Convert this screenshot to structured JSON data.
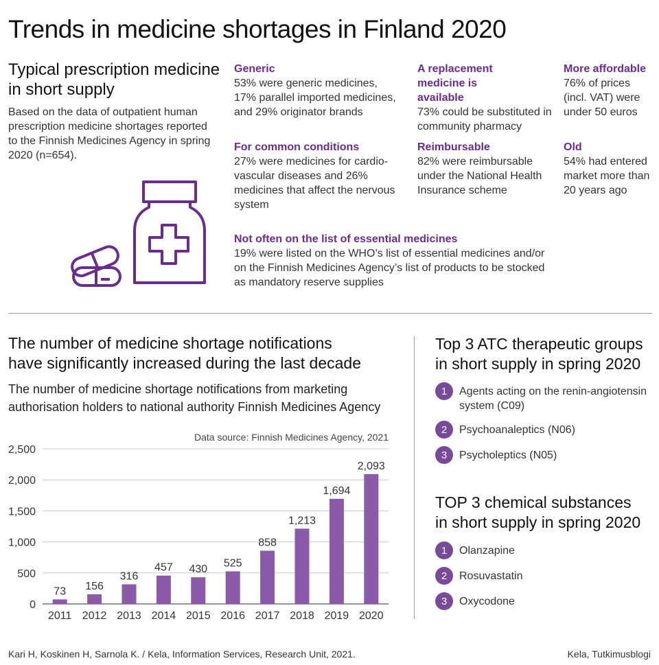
{
  "title": "Trends in medicine shortages in Finland 2020",
  "intro": {
    "heading_line1": "Typical prescription medicine",
    "heading_line2": "in short supply",
    "text": "Based on the data of outpatient human prescription medicine shortages reported to the Finnish Medicines Agency in spring 2020 (n=654)."
  },
  "facts": [
    {
      "title": "Generic",
      "text": "53% were generic medicines, 17% parallel imported medicines, and 29% originator brands"
    },
    {
      "title": "A replacement medicine is available",
      "text": "73% could be substituted in community pharmacy"
    },
    {
      "title": "More affordable",
      "text": "76% of prices (incl. VAT) were under 50 euros"
    },
    {
      "title": "For common conditions",
      "text": "27% were medicines for cardio-vascular diseases and 26% medicines that affect the nervous system"
    },
    {
      "title": "Reimbursable",
      "text": "82% were reimbursable under the National Health Insurance scheme"
    },
    {
      "title": "Old",
      "text": "54% had entered market more than 20 years ago"
    },
    {
      "title": "Not often on the list of essential medicines",
      "text": "19% were listed on the WHO’s list of essential medicines and/or on the Finnish Medicines Agency’s list of products to be stocked as mandatory reserve supplies"
    }
  ],
  "chart_section": {
    "heading_line1": "The number of medicine shortage notifications",
    "heading_line2": "have significantly increased during the last decade",
    "subtitle_line1": "The number of medicine shortage notifications from marketing",
    "subtitle_line2": "authorisation holders to national authority Finnish Medicines Agency"
  },
  "chart_data": {
    "type": "bar",
    "source": "Data source: Finnish Medicines Agency, 2021",
    "categories": [
      "2011",
      "2012",
      "2013",
      "2014",
      "2015",
      "2016",
      "2017",
      "2018",
      "2019",
      "2020"
    ],
    "values": [
      73,
      156,
      316,
      457,
      430,
      525,
      858,
      1213,
      1694,
      2093
    ],
    "value_labels": [
      "73",
      "156",
      "316",
      "457",
      "430",
      "525",
      "858",
      "1,213",
      "1,694",
      "2,093"
    ],
    "ylim": [
      0,
      2500
    ],
    "yticks": [
      0,
      500,
      1000,
      1500,
      2000,
      2500
    ],
    "ytick_labels": [
      "0",
      "500",
      "1,000",
      "1,500",
      "2,000",
      "2,500"
    ],
    "grid": true,
    "bar_color": "#8b5aa8"
  },
  "atc": {
    "heading_line1": "Top 3 ATC therapeutic groups",
    "heading_line2": "in short supply in spring 2020",
    "items": [
      {
        "rank": "1",
        "line1": "Agents acting on the renin-angiotensin",
        "line2": "system (C09)"
      },
      {
        "rank": "2",
        "line1": "Psychoanaleptics (N06)",
        "line2": ""
      },
      {
        "rank": "3",
        "line1": "Psycholeptics (N05)",
        "line2": ""
      }
    ]
  },
  "substances": {
    "heading_line1": "TOP 3 chemical substances",
    "heading_line2": "in short supply in spring 2020",
    "items": [
      {
        "rank": "1",
        "name": "Olanzapine"
      },
      {
        "rank": "2",
        "name": "Rosuvastatin"
      },
      {
        "rank": "3",
        "name": "Oxycodone"
      }
    ]
  },
  "footer": {
    "left": "Kari H, Koskinen H, Sarnola K. / Kela, Information Services, Research Unit, 2021.",
    "right": "Kela, Tutkimusblogi"
  },
  "colors": {
    "accent": "#6b2c8f",
    "icon": "#6b2c8f",
    "bar": "#8b5aa8",
    "badge": "#7a4a9a"
  },
  "icons": [
    "pill-bottle-icon",
    "capsule-icon"
  ]
}
